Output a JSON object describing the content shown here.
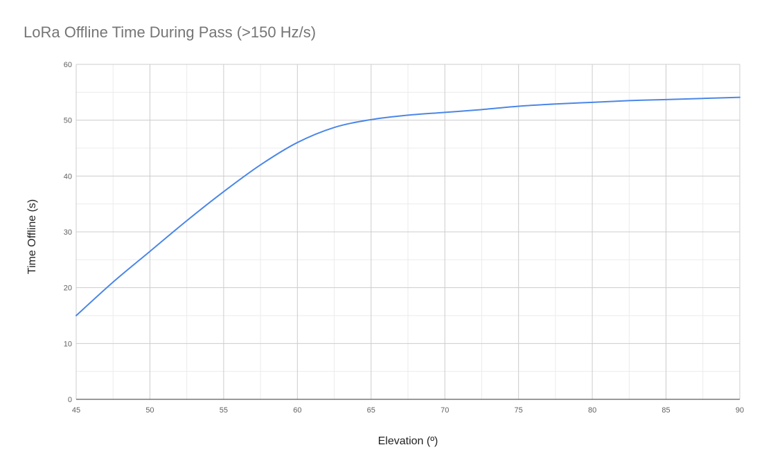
{
  "chart_data": {
    "type": "line",
    "title": "LoRa Offline Time During Pass (>150 Hz/s)",
    "xlabel": "Elevation (º)",
    "ylabel": "Time Offline (s)",
    "xlim": [
      45,
      90
    ],
    "ylim": [
      0,
      60
    ],
    "x_ticks": [
      "45",
      "50",
      "55",
      "60",
      "65",
      "70",
      "75",
      "80",
      "85",
      "90"
    ],
    "y_ticks": [
      "0",
      "10",
      "20",
      "30",
      "40",
      "50",
      "60"
    ],
    "grid": true,
    "legend": "none",
    "series": [
      {
        "color": "#4a86e8",
        "x": [
          45,
          47.5,
          50,
          52.5,
          55,
          57.5,
          60,
          62.5,
          65,
          67.5,
          70,
          72.5,
          75,
          77.5,
          80,
          82.5,
          85,
          87.5,
          90
        ],
        "y": [
          15,
          21,
          26.5,
          32,
          37.2,
          42,
          46,
          48.7,
          50.1,
          50.9,
          51.4,
          51.9,
          52.5,
          52.9,
          53.2,
          53.5,
          53.7,
          53.9,
          54.1
        ]
      }
    ]
  }
}
